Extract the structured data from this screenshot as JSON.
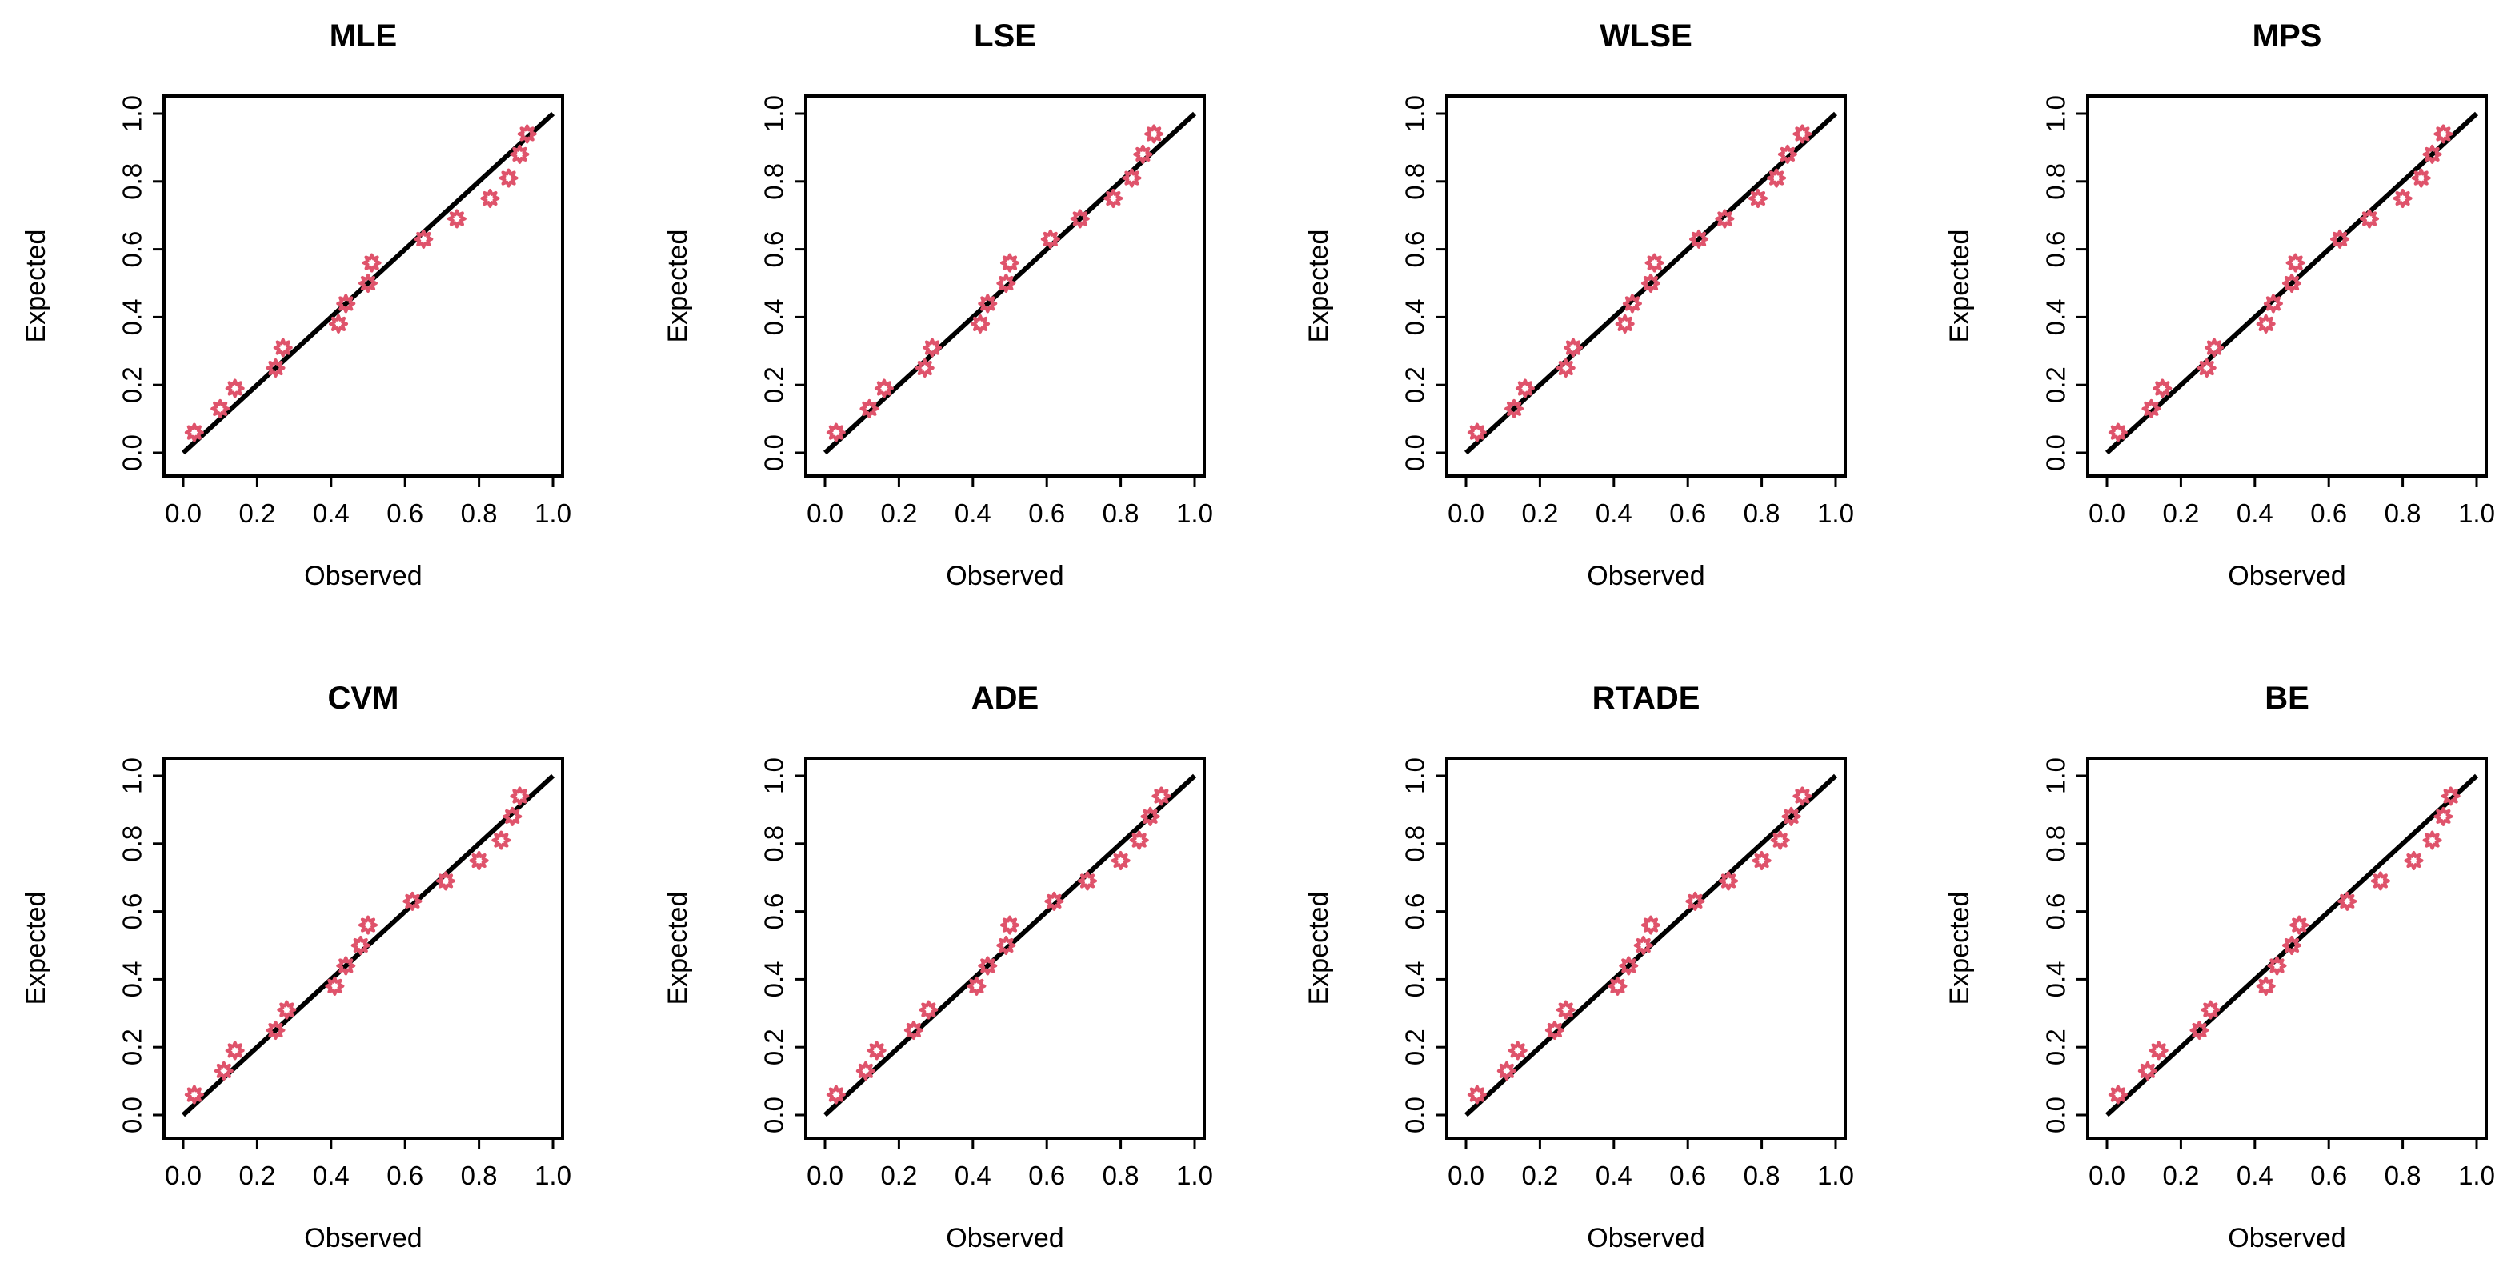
{
  "chart_data": [
    {
      "type": "scatter",
      "title": "MLE",
      "xlabel": "Observed",
      "ylabel": "Expected",
      "xlim": [
        0,
        1
      ],
      "ylim": [
        0,
        1
      ],
      "ticks": [
        "0.0",
        "0.2",
        "0.4",
        "0.6",
        "0.8",
        "1.0"
      ],
      "reference_line": "y = x",
      "points": {
        "x": [
          0.03,
          0.1,
          0.14,
          0.25,
          0.27,
          0.42,
          0.44,
          0.5,
          0.51,
          0.65,
          0.74,
          0.83,
          0.88,
          0.91,
          0.93
        ],
        "y": [
          0.06,
          0.13,
          0.19,
          0.25,
          0.31,
          0.38,
          0.44,
          0.5,
          0.56,
          0.63,
          0.69,
          0.75,
          0.81,
          0.88,
          0.94
        ]
      }
    },
    {
      "type": "scatter",
      "title": "LSE",
      "xlabel": "Observed",
      "ylabel": "Expected",
      "xlim": [
        0,
        1
      ],
      "ylim": [
        0,
        1
      ],
      "ticks": [
        "0.0",
        "0.2",
        "0.4",
        "0.6",
        "0.8",
        "1.0"
      ],
      "reference_line": "y = x",
      "points": {
        "x": [
          0.03,
          0.12,
          0.16,
          0.27,
          0.29,
          0.42,
          0.44,
          0.49,
          0.5,
          0.61,
          0.69,
          0.78,
          0.83,
          0.86,
          0.89
        ],
        "y": [
          0.06,
          0.13,
          0.19,
          0.25,
          0.31,
          0.38,
          0.44,
          0.5,
          0.56,
          0.63,
          0.69,
          0.75,
          0.81,
          0.88,
          0.94
        ]
      }
    },
    {
      "type": "scatter",
      "title": "WLSE",
      "xlabel": "Observed",
      "ylabel": "Expected",
      "xlim": [
        0,
        1
      ],
      "ylim": [
        0,
        1
      ],
      "ticks": [
        "0.0",
        "0.2",
        "0.4",
        "0.6",
        "0.8",
        "1.0"
      ],
      "reference_line": "y = x",
      "points": {
        "x": [
          0.03,
          0.13,
          0.16,
          0.27,
          0.29,
          0.43,
          0.45,
          0.5,
          0.51,
          0.63,
          0.7,
          0.79,
          0.84,
          0.87,
          0.91
        ],
        "y": [
          0.06,
          0.13,
          0.19,
          0.25,
          0.31,
          0.38,
          0.44,
          0.5,
          0.56,
          0.63,
          0.69,
          0.75,
          0.81,
          0.88,
          0.94
        ]
      }
    },
    {
      "type": "scatter",
      "title": "MPS",
      "xlabel": "Observed",
      "ylabel": "Expected",
      "xlim": [
        0,
        1
      ],
      "ylim": [
        0,
        1
      ],
      "ticks": [
        "0.0",
        "0.2",
        "0.4",
        "0.6",
        "0.8",
        "1.0"
      ],
      "reference_line": "y = x",
      "points": {
        "x": [
          0.03,
          0.12,
          0.15,
          0.27,
          0.29,
          0.43,
          0.45,
          0.5,
          0.51,
          0.63,
          0.71,
          0.8,
          0.85,
          0.88,
          0.91
        ],
        "y": [
          0.06,
          0.13,
          0.19,
          0.25,
          0.31,
          0.38,
          0.44,
          0.5,
          0.56,
          0.63,
          0.69,
          0.75,
          0.81,
          0.88,
          0.94
        ]
      }
    },
    {
      "type": "scatter",
      "title": "CVM",
      "xlabel": "Observed",
      "ylabel": "Expected",
      "xlim": [
        0,
        1
      ],
      "ylim": [
        0,
        1
      ],
      "ticks": [
        "0.0",
        "0.2",
        "0.4",
        "0.6",
        "0.8",
        "1.0"
      ],
      "reference_line": "y = x",
      "points": {
        "x": [
          0.03,
          0.11,
          0.14,
          0.25,
          0.28,
          0.41,
          0.44,
          0.48,
          0.5,
          0.62,
          0.71,
          0.8,
          0.86,
          0.89,
          0.91
        ],
        "y": [
          0.06,
          0.13,
          0.19,
          0.25,
          0.31,
          0.38,
          0.44,
          0.5,
          0.56,
          0.63,
          0.69,
          0.75,
          0.81,
          0.88,
          0.94
        ]
      }
    },
    {
      "type": "scatter",
      "title": "ADE",
      "xlabel": "Observed",
      "ylabel": "Expected",
      "xlim": [
        0,
        1
      ],
      "ylim": [
        0,
        1
      ],
      "ticks": [
        "0.0",
        "0.2",
        "0.4",
        "0.6",
        "0.8",
        "1.0"
      ],
      "reference_line": "y = x",
      "points": {
        "x": [
          0.03,
          0.11,
          0.14,
          0.24,
          0.28,
          0.41,
          0.44,
          0.49,
          0.5,
          0.62,
          0.71,
          0.8,
          0.85,
          0.88,
          0.91
        ],
        "y": [
          0.06,
          0.13,
          0.19,
          0.25,
          0.31,
          0.38,
          0.44,
          0.5,
          0.56,
          0.63,
          0.69,
          0.75,
          0.81,
          0.88,
          0.94
        ]
      }
    },
    {
      "type": "scatter",
      "title": "RTADE",
      "xlabel": "Observed",
      "ylabel": "Expected",
      "xlim": [
        0,
        1
      ],
      "ylim": [
        0,
        1
      ],
      "ticks": [
        "0.0",
        "0.2",
        "0.4",
        "0.6",
        "0.8",
        "1.0"
      ],
      "reference_line": "y = x",
      "points": {
        "x": [
          0.03,
          0.11,
          0.14,
          0.24,
          0.27,
          0.41,
          0.44,
          0.48,
          0.5,
          0.62,
          0.71,
          0.8,
          0.85,
          0.88,
          0.91
        ],
        "y": [
          0.06,
          0.13,
          0.19,
          0.25,
          0.31,
          0.38,
          0.44,
          0.5,
          0.56,
          0.63,
          0.69,
          0.75,
          0.81,
          0.88,
          0.94
        ]
      }
    },
    {
      "type": "scatter",
      "title": "BE",
      "xlabel": "Observed",
      "ylabel": "Expected",
      "xlim": [
        0,
        1
      ],
      "ylim": [
        0,
        1
      ],
      "ticks": [
        "0.0",
        "0.2",
        "0.4",
        "0.6",
        "0.8",
        "1.0"
      ],
      "reference_line": "y = x",
      "points": {
        "x": [
          0.03,
          0.11,
          0.14,
          0.25,
          0.28,
          0.43,
          0.46,
          0.5,
          0.52,
          0.65,
          0.74,
          0.83,
          0.88,
          0.91,
          0.93
        ],
        "y": [
          0.06,
          0.13,
          0.19,
          0.25,
          0.31,
          0.38,
          0.44,
          0.5,
          0.56,
          0.63,
          0.69,
          0.75,
          0.81,
          0.88,
          0.94
        ]
      }
    }
  ],
  "style": {
    "point_color": "#df536b",
    "line_color": "#000000",
    "frame_color": "#000000"
  }
}
